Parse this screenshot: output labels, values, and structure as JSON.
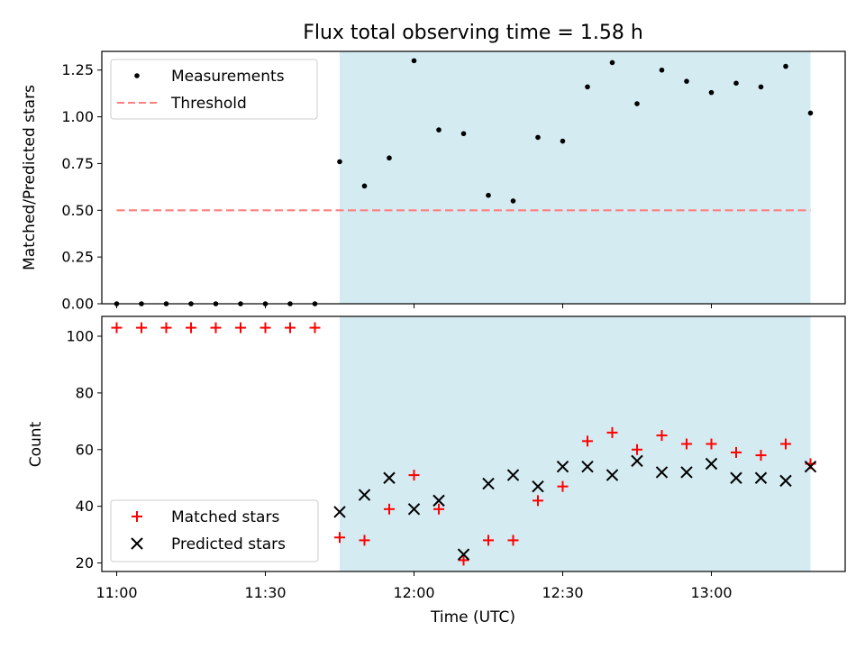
{
  "chart_data": {
    "type": "scatter",
    "title": "Flux total observing time = 1.58 h",
    "xlabel": "Time (UTC)",
    "x_axis": {
      "unit": "UTC time",
      "range": [
        "10:57",
        "13:27"
      ],
      "ticks": [
        "11:00",
        "11:30",
        "12:00",
        "12:30",
        "13:00"
      ]
    },
    "x_times": [
      "11:00",
      "11:05",
      "11:10",
      "11:15",
      "11:20",
      "11:25",
      "11:30",
      "11:35",
      "11:40",
      "11:45",
      "11:50",
      "11:55",
      "12:00",
      "12:05",
      "12:10",
      "12:15",
      "12:20",
      "12:25",
      "12:30",
      "12:35",
      "12:40",
      "12:45",
      "12:50",
      "12:55",
      "13:00",
      "13:05",
      "13:10",
      "13:15",
      "13:20"
    ],
    "observing_window": {
      "start": "11:45",
      "end": "13:20",
      "color": "#d4ebf2"
    },
    "panels": [
      {
        "id": "ratio",
        "ylabel": "Matched/Predicted stars",
        "ylim": [
          0,
          1.35
        ],
        "yticks": [
          "0.00",
          "0.25",
          "0.50",
          "0.75",
          "1.00",
          "1.25"
        ],
        "legend_position": "upper left",
        "series": [
          {
            "name": "Measurements",
            "marker": "dot",
            "color": "#000000",
            "values": [
              0,
              0,
              0,
              0,
              0,
              0,
              0,
              0,
              0,
              0.76,
              0.63,
              0.78,
              1.3,
              0.93,
              0.91,
              0.58,
              0.55,
              0.89,
              0.87,
              1.16,
              1.29,
              1.07,
              1.25,
              1.19,
              1.13,
              1.18,
              1.16,
              1.27,
              1.02
            ]
          },
          {
            "name": "Threshold",
            "marker": "dashed-line",
            "color": "#ff7f7f",
            "x_range": [
              "11:00",
              "13:20"
            ],
            "value": 0.5
          }
        ]
      },
      {
        "id": "counts",
        "ylabel": "Count",
        "ylim": [
          17,
          107
        ],
        "yticks": [
          "20",
          "40",
          "60",
          "80",
          "100"
        ],
        "legend_position": "lower left",
        "series": [
          {
            "name": "Matched stars",
            "marker": "plus",
            "color": "#ff0000",
            "values": [
              103,
              103,
              103,
              103,
              103,
              103,
              103,
              103,
              103,
              29,
              28,
              39,
              51,
              39,
              21,
              28,
              28,
              42,
              47,
              63,
              66,
              60,
              65,
              62,
              62,
              59,
              58,
              62,
              55
            ]
          },
          {
            "name": "Predicted stars",
            "marker": "x",
            "color": "#000000",
            "values": [
              null,
              null,
              null,
              null,
              null,
              null,
              null,
              null,
              null,
              38,
              44,
              50,
              39,
              42,
              23,
              48,
              51,
              47,
              54,
              54,
              51,
              56,
              52,
              52,
              55,
              50,
              50,
              49,
              54
            ]
          }
        ]
      }
    ]
  }
}
